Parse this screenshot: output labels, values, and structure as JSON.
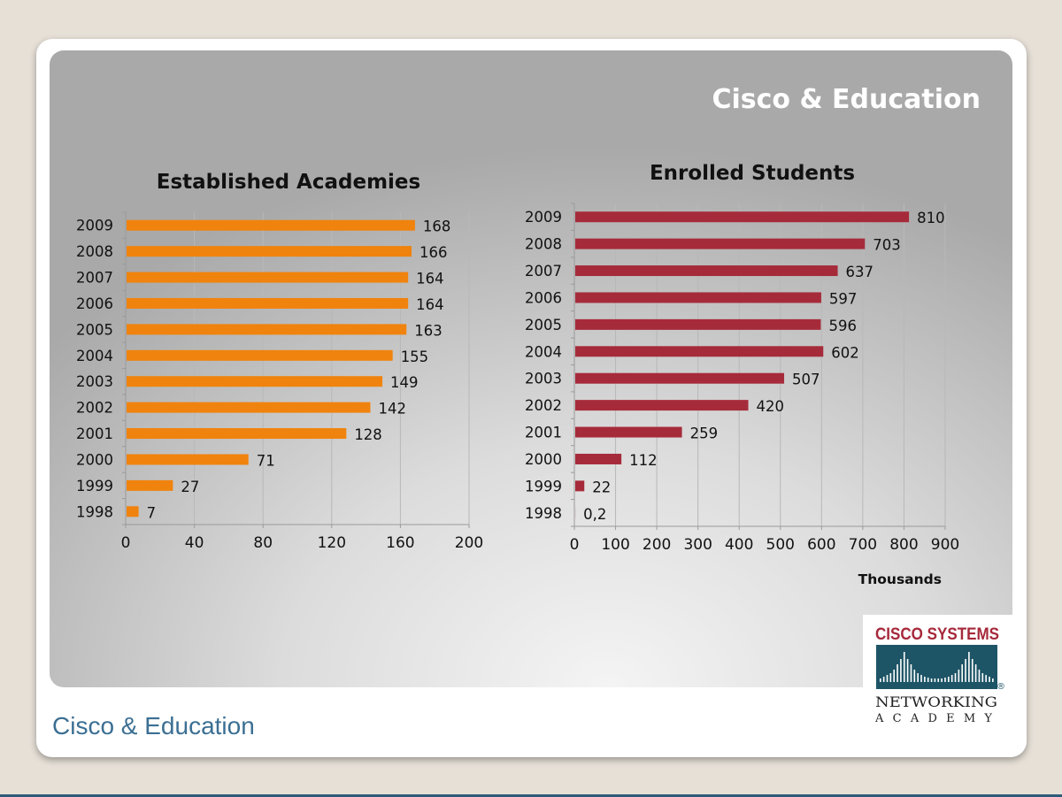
{
  "slide": {
    "title": "Cisco & Education",
    "footer": "Cisco & Education"
  },
  "logo": {
    "line1": "Cisco Systems",
    "line2": "Networking",
    "line3": "Academy",
    "registered": "®"
  },
  "colors": {
    "academies_bar": "#f0830d",
    "students_bar": "#a62b3a",
    "title_text": "#ffffff",
    "footer_text": "#3b6f93"
  },
  "chart_data": [
    {
      "type": "bar",
      "orientation": "horizontal",
      "title": "Established Academies",
      "categories": [
        "2009",
        "2008",
        "2007",
        "2006",
        "2005",
        "2004",
        "2003",
        "2002",
        "2001",
        "2000",
        "1999",
        "1998"
      ],
      "values": [
        168,
        166,
        164,
        164,
        163,
        155,
        149,
        142,
        128,
        71,
        27,
        7
      ],
      "value_labels": [
        "168",
        "166",
        "164",
        "164",
        "163",
        "155",
        "149",
        "142",
        "128",
        "71",
        "27",
        "7"
      ],
      "xlim": [
        0,
        200
      ],
      "xticks": [
        0,
        40,
        80,
        120,
        160,
        200
      ],
      "xlabel": "",
      "grid": true
    },
    {
      "type": "bar",
      "orientation": "horizontal",
      "title": "Enrolled Students",
      "categories": [
        "2009",
        "2008",
        "2007",
        "2006",
        "2005",
        "2004",
        "2003",
        "2002",
        "2001",
        "2000",
        "1999",
        "1998"
      ],
      "values": [
        810,
        703,
        637,
        597,
        596,
        602,
        507,
        420,
        259,
        112,
        22,
        0.2
      ],
      "value_labels": [
        "810",
        "703",
        "637",
        "597",
        "596",
        "602",
        "507",
        "420",
        "259",
        "112",
        "22",
        "0,2"
      ],
      "xlim": [
        0,
        900
      ],
      "xticks": [
        0,
        100,
        200,
        300,
        400,
        500,
        600,
        700,
        800,
        900
      ],
      "xlabel": "Thousands",
      "grid": true
    }
  ]
}
